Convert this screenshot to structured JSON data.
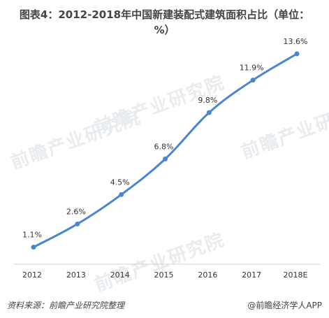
{
  "title": "图表4：2012-2018年中国新建装配式建筑面积占比（单位：%）",
  "watermark": "前瞻产业研究院",
  "footer": {
    "source": "资料来源：前瞻产业研究院整理",
    "brand": "@前瞻经济学人APP"
  },
  "colors": {
    "line": "#4a86cf",
    "axis": "#d0d0d0",
    "text": "#333333"
  },
  "chart_data": {
    "type": "line",
    "title": "图表4：2012-2018年中国新建装配式建筑面积占比（单位：%）",
    "categories": [
      "2012",
      "2013",
      "2014",
      "2015",
      "2016",
      "2017",
      "2018E"
    ],
    "series": [
      {
        "values": [
          1.1,
          2.6,
          4.5,
          6.8,
          9.8,
          11.9,
          13.6
        ]
      }
    ],
    "data_labels": [
      "1.1%",
      "2.6%",
      "4.5%",
      "6.8%",
      "9.8%",
      "11.9%",
      "13.6%"
    ],
    "ylim": [
      0,
      15
    ],
    "grid": false,
    "legend": "none"
  }
}
